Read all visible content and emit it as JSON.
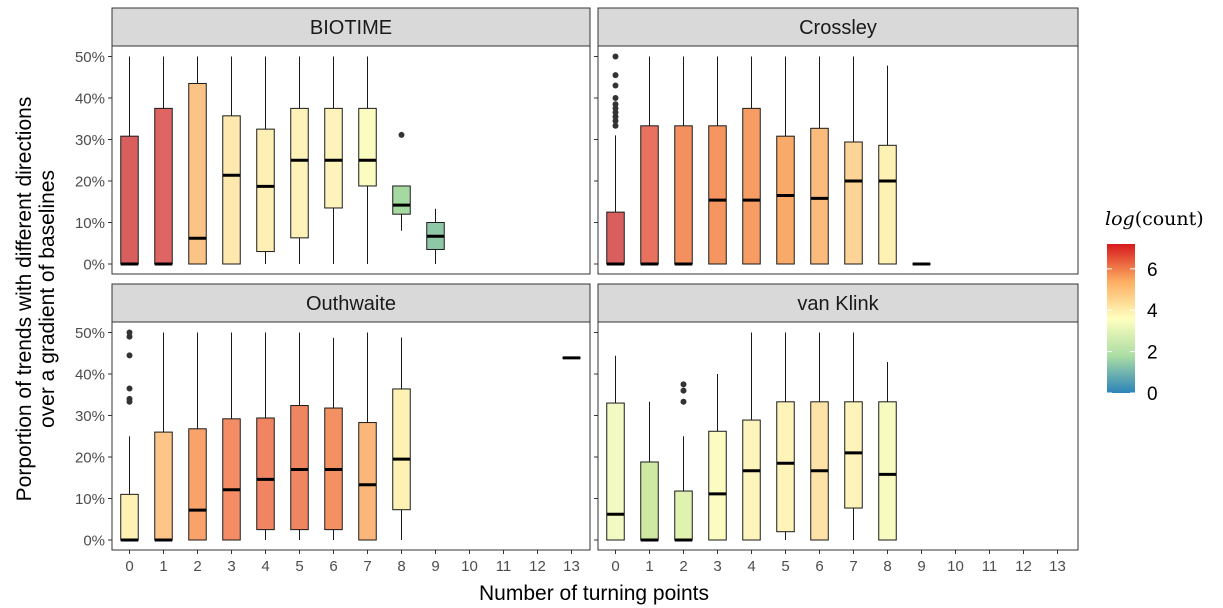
{
  "chart_data": {
    "type": "boxplot",
    "xlabel": "Number of turning points",
    "ylabel_lines": [
      "Porportion of trends with different directions",
      "over a gradient of baselines"
    ],
    "x_ticks": [
      "0",
      "1",
      "2",
      "3",
      "4",
      "5",
      "6",
      "7",
      "8",
      "9",
      "10",
      "11",
      "12",
      "13"
    ],
    "y_ticks": [
      "0%",
      "10%",
      "20%",
      "30%",
      "40%",
      "50%"
    ],
    "ylim": [
      0,
      0.5
    ],
    "legend": {
      "title_italic": "log",
      "title_rest": "(count)",
      "ticks": [
        "0",
        "2",
        "4",
        "6"
      ],
      "range": [
        0,
        7.2
      ],
      "placement": "right",
      "palette": [
        "#2b83ba",
        "#abdda4",
        "#ffffbf",
        "#fdae61",
        "#d7191c"
      ]
    },
    "panels": [
      {
        "title": "BIOTIME",
        "boxes": [
          {
            "x": 0,
            "min": 0,
            "q1": 0,
            "median": 0,
            "q3": 0.308,
            "max": 0.5,
            "outliers": [],
            "color": "#d95f5f"
          },
          {
            "x": 1,
            "min": 0,
            "q1": 0,
            "median": 0,
            "q3": 0.375,
            "max": 0.5,
            "outliers": [],
            "color": "#df6464"
          },
          {
            "x": 2,
            "min": 0,
            "q1": 0,
            "median": 0.062,
            "q3": 0.435,
            "max": 0.5,
            "outliers": [],
            "color": "#fcc386"
          },
          {
            "x": 3,
            "min": 0,
            "q1": 0,
            "median": 0.214,
            "q3": 0.357,
            "max": 0.5,
            "outliers": [],
            "color": "#fee8ae"
          },
          {
            "x": 4,
            "min": 0,
            "q1": 0.03,
            "median": 0.187,
            "q3": 0.325,
            "max": 0.5,
            "outliers": [],
            "color": "#fef0b5"
          },
          {
            "x": 5,
            "min": 0,
            "q1": 0.063,
            "median": 0.25,
            "q3": 0.375,
            "max": 0.5,
            "outliers": [],
            "color": "#fef2b9"
          },
          {
            "x": 6,
            "min": 0,
            "q1": 0.135,
            "median": 0.25,
            "q3": 0.375,
            "max": 0.5,
            "outliers": [],
            "color": "#fef4bb"
          },
          {
            "x": 7,
            "min": 0,
            "q1": 0.188,
            "median": 0.25,
            "q3": 0.375,
            "max": 0.5,
            "outliers": [],
            "color": "#fbfcc0"
          },
          {
            "x": 8,
            "min": 0.08,
            "q1": 0.12,
            "median": 0.142,
            "q3": 0.188,
            "max": 0.188,
            "outliers": [
              0.311
            ],
            "color": "#a6d9a2"
          },
          {
            "x": 9,
            "min": 0,
            "q1": 0.035,
            "median": 0.067,
            "q3": 0.1,
            "max": 0.133,
            "outliers": [],
            "color": "#8fc8a7"
          }
        ]
      },
      {
        "title": "Crossley",
        "boxes": [
          {
            "x": 0,
            "min": 0,
            "q1": 0,
            "median": 0,
            "q3": 0.125,
            "max": 0.31,
            "outliers": [
              0.333,
              0.345,
              0.355,
              0.365,
              0.375,
              0.385,
              0.4,
              0.43,
              0.455,
              0.5
            ],
            "color": "#d95f5f"
          },
          {
            "x": 1,
            "min": 0,
            "q1": 0,
            "median": 0,
            "q3": 0.333,
            "max": 0.5,
            "outliers": [],
            "color": "#e8715f"
          },
          {
            "x": 2,
            "min": 0,
            "q1": 0,
            "median": 0,
            "q3": 0.333,
            "max": 0.5,
            "outliers": [],
            "color": "#f3905d"
          },
          {
            "x": 3,
            "min": 0,
            "q1": 0,
            "median": 0.154,
            "q3": 0.333,
            "max": 0.5,
            "outliers": [],
            "color": "#f59560"
          },
          {
            "x": 4,
            "min": 0,
            "q1": 0,
            "median": 0.154,
            "q3": 0.375,
            "max": 0.5,
            "outliers": [],
            "color": "#f79d64"
          },
          {
            "x": 5,
            "min": 0,
            "q1": 0,
            "median": 0.165,
            "q3": 0.308,
            "max": 0.5,
            "outliers": [],
            "color": "#f9a968"
          },
          {
            "x": 6,
            "min": 0,
            "q1": 0,
            "median": 0.158,
            "q3": 0.327,
            "max": 0.5,
            "outliers": [],
            "color": "#fbbb7c"
          },
          {
            "x": 7,
            "min": 0,
            "q1": 0,
            "median": 0.2,
            "q3": 0.294,
            "max": 0.5,
            "outliers": [],
            "color": "#fdd495"
          },
          {
            "x": 8,
            "min": 0,
            "q1": 0,
            "median": 0.2,
            "q3": 0.286,
            "max": 0.478,
            "outliers": [],
            "color": "#fef1b3"
          },
          {
            "x": 9,
            "min": 0,
            "q1": 0,
            "median": 0,
            "q3": 0,
            "max": 0,
            "outliers": [],
            "color": "#8ec8a6"
          }
        ]
      },
      {
        "title": "Outhwaite",
        "boxes": [
          {
            "x": 0,
            "min": 0,
            "q1": 0,
            "median": 0,
            "q3": 0.11,
            "max": 0.25,
            "outliers": [
              0.333,
              0.34,
              0.365,
              0.445,
              0.49,
              0.5
            ],
            "color": "#fdf1b4"
          },
          {
            "x": 1,
            "min": 0,
            "q1": 0,
            "median": 0,
            "q3": 0.26,
            "max": 0.5,
            "outliers": [],
            "color": "#fdc688"
          },
          {
            "x": 2,
            "min": 0,
            "q1": 0,
            "median": 0.072,
            "q3": 0.268,
            "max": 0.5,
            "outliers": [],
            "color": "#f9a36a"
          },
          {
            "x": 3,
            "min": 0,
            "q1": 0,
            "median": 0.121,
            "q3": 0.292,
            "max": 0.5,
            "outliers": [],
            "color": "#f48d66"
          },
          {
            "x": 4,
            "min": 0,
            "q1": 0.025,
            "median": 0.146,
            "q3": 0.294,
            "max": 0.5,
            "outliers": [],
            "color": "#f18563"
          },
          {
            "x": 5,
            "min": 0,
            "q1": 0.025,
            "median": 0.17,
            "q3": 0.324,
            "max": 0.5,
            "outliers": [],
            "color": "#f08562"
          },
          {
            "x": 6,
            "min": 0,
            "q1": 0.025,
            "median": 0.17,
            "q3": 0.318,
            "max": 0.487,
            "outliers": [],
            "color": "#f39162"
          },
          {
            "x": 7,
            "min": 0,
            "q1": 0,
            "median": 0.133,
            "q3": 0.283,
            "max": 0.5,
            "outliers": [],
            "color": "#fbb77a"
          },
          {
            "x": 8,
            "min": 0,
            "q1": 0.073,
            "median": 0.195,
            "q3": 0.364,
            "max": 0.488,
            "outliers": [],
            "color": "#fdf1b4"
          },
          {
            "x": 13,
            "min": 0.439,
            "q1": 0.439,
            "median": 0.439,
            "q3": 0.439,
            "max": 0.439,
            "outliers": [],
            "color": "#fdf1b4"
          }
        ]
      },
      {
        "title": "van Klink",
        "boxes": [
          {
            "x": 0,
            "min": 0,
            "q1": 0,
            "median": 0.062,
            "q3": 0.33,
            "max": 0.444,
            "outliers": [],
            "color": "#f3f9c2"
          },
          {
            "x": 1,
            "min": 0,
            "q1": 0,
            "median": 0,
            "q3": 0.188,
            "max": 0.333,
            "outliers": [],
            "color": "#cde9a2"
          },
          {
            "x": 2,
            "min": 0,
            "q1": 0,
            "median": 0,
            "q3": 0.118,
            "max": 0.25,
            "outliers": [
              0.333,
              0.36,
              0.375
            ],
            "color": "#dff2b0"
          },
          {
            "x": 3,
            "min": 0,
            "q1": 0,
            "median": 0.111,
            "q3": 0.262,
            "max": 0.4,
            "outliers": [],
            "color": "#fafcc0"
          },
          {
            "x": 4,
            "min": 0,
            "q1": 0,
            "median": 0.167,
            "q3": 0.289,
            "max": 0.5,
            "outliers": [],
            "color": "#fef5bd"
          },
          {
            "x": 5,
            "min": 0,
            "q1": 0.02,
            "median": 0.185,
            "q3": 0.333,
            "max": 0.5,
            "outliers": [],
            "color": "#fef3b8"
          },
          {
            "x": 6,
            "min": 0,
            "q1": 0,
            "median": 0.167,
            "q3": 0.333,
            "max": 0.5,
            "outliers": [],
            "color": "#fee2a8"
          },
          {
            "x": 7,
            "min": 0,
            "q1": 0.077,
            "median": 0.21,
            "q3": 0.333,
            "max": 0.5,
            "outliers": [],
            "color": "#fef4b9"
          },
          {
            "x": 8,
            "min": 0,
            "q1": 0,
            "median": 0.158,
            "q3": 0.333,
            "max": 0.429,
            "outliers": [],
            "color": "#f8fbc0"
          }
        ]
      }
    ]
  }
}
